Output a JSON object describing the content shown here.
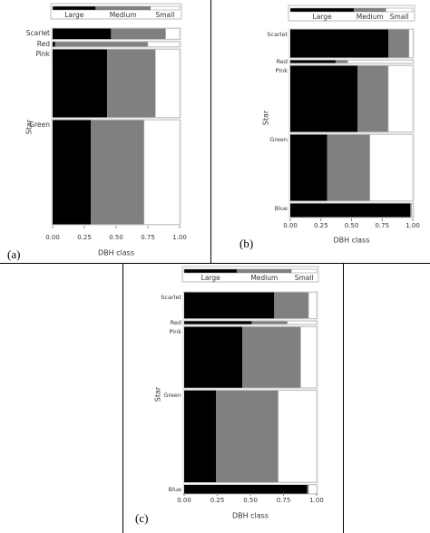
{
  "chart_data": [
    {
      "type": "mosaic",
      "panel_label": "(a)",
      "x_label": "DBH class",
      "y_label": "Star",
      "categories": [
        "Scarlet",
        "Red",
        "Pink",
        "Green"
      ],
      "category_shares": [
        0.06,
        0.03,
        0.36,
        0.55
      ],
      "series": [
        {
          "name": "Large",
          "color": "#000000",
          "values": [
            0.46,
            0.02,
            0.43,
            0.3
          ],
          "total": 0.34
        },
        {
          "name": "Medium",
          "color": "#808080",
          "values": [
            0.43,
            0.73,
            0.38,
            0.42
          ],
          "total": 0.43
        },
        {
          "name": "Small",
          "color": "#ffffff",
          "values": [
            0.11,
            0.25,
            0.19,
            0.28
          ],
          "total": 0.23
        }
      ],
      "xlim": [
        0,
        1
      ],
      "xticks": [
        {
          "value": 0,
          "label": "0.00"
        },
        {
          "value": 0.25,
          "label": "0.25"
        },
        {
          "value": 0.5,
          "label": "0.50"
        },
        {
          "value": 0.75,
          "label": "0.75"
        },
        {
          "value": 1,
          "label": "1.00"
        }
      ]
    },
    {
      "type": "mosaic",
      "panel_label": "(b)",
      "x_label": "DBH class",
      "y_label": "Star",
      "categories": [
        "Scarlet",
        "Red",
        "Pink",
        "Green",
        "Blue"
      ],
      "category_shares": [
        0.16,
        0.02,
        0.37,
        0.37,
        0.08
      ],
      "series": [
        {
          "name": "Large",
          "color": "#000000",
          "values": [
            0.8,
            0.37,
            0.55,
            0.3,
            0.98
          ],
          "total": 0.52
        },
        {
          "name": "Medium",
          "color": "#808080",
          "values": [
            0.17,
            0.1,
            0.25,
            0.35,
            0.01
          ],
          "total": 0.26
        },
        {
          "name": "Small",
          "color": "#ffffff",
          "values": [
            0.03,
            0.53,
            0.2,
            0.35,
            0.01
          ],
          "total": 0.22
        }
      ],
      "xlim": [
        0,
        1
      ],
      "xticks": [
        {
          "value": 0,
          "label": "0.00"
        },
        {
          "value": 0.25,
          "label": "0.25"
        },
        {
          "value": 0.5,
          "label": "0.50"
        },
        {
          "value": 0.75,
          "label": "0.75"
        },
        {
          "value": 1,
          "label": "1.00"
        }
      ]
    },
    {
      "type": "mosaic",
      "panel_label": "(c)",
      "x_label": "DBH class",
      "y_label": "Star",
      "categories": [
        "Scarlet",
        "Red",
        "Pink",
        "Green",
        "Blue"
      ],
      "category_shares": [
        0.14,
        0.02,
        0.32,
        0.48,
        0.05
      ],
      "series": [
        {
          "name": "Large",
          "color": "#000000",
          "values": [
            0.68,
            0.51,
            0.44,
            0.24,
            0.93
          ],
          "total": 0.4
        },
        {
          "name": "Medium",
          "color": "#808080",
          "values": [
            0.26,
            0.27,
            0.44,
            0.47,
            0.01
          ],
          "total": 0.41
        },
        {
          "name": "Small",
          "color": "#ffffff",
          "values": [
            0.06,
            0.22,
            0.12,
            0.29,
            0.06
          ],
          "total": 0.19
        }
      ],
      "xlim": [
        0,
        1
      ],
      "xticks": [
        {
          "value": 0,
          "label": "0.00"
        },
        {
          "value": 0.25,
          "label": "0.25"
        },
        {
          "value": 0.5,
          "label": "0.50"
        },
        {
          "value": 0.75,
          "label": "0.75"
        },
        {
          "value": 1,
          "label": "1.00"
        }
      ]
    }
  ]
}
